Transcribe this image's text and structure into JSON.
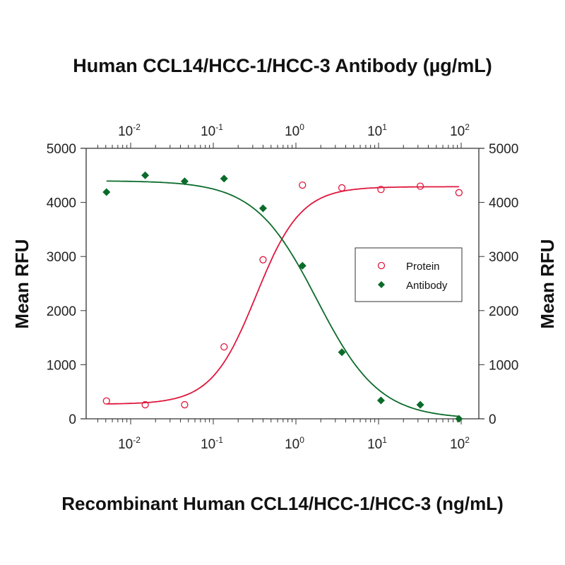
{
  "chart_data": {
    "type": "scatter",
    "title": "Human CCL14/HCC-1/HCC-3 Antibody (µg/mL)",
    "xlabel": "Recombinant Human CCL14/HCC-1/HCC-3 (ng/mL)",
    "ylabel_left": "Mean RFU",
    "ylabel_right": "Mean RFU",
    "xscale": "log",
    "xlim": [
      0.0032,
      180
    ],
    "ylim": [
      0,
      5000
    ],
    "x_ticks": [
      {
        "value": 0.01,
        "base": "10",
        "exp": "-2"
      },
      {
        "value": 0.1,
        "base": "10",
        "exp": "-1"
      },
      {
        "value": 1,
        "base": "10",
        "exp": "0"
      },
      {
        "value": 10,
        "base": "10",
        "exp": "1"
      },
      {
        "value": 100,
        "base": "10",
        "exp": "2"
      }
    ],
    "y_ticks": [
      "0",
      "1000",
      "2000",
      "3000",
      "4000",
      "5000"
    ],
    "y_tick_values": [
      0,
      1000,
      2000,
      3000,
      4000,
      5000
    ],
    "grid": false,
    "legend": {
      "position": "center-right",
      "entries": [
        "Protein",
        "Antibody"
      ]
    },
    "series": [
      {
        "name": "Protein",
        "marker": "open-circle",
        "color": "#e0173d",
        "x": [
          0.0051,
          0.015,
          0.045,
          0.135,
          0.4,
          1.2,
          3.6,
          10.7,
          32,
          94
        ],
        "y": [
          330,
          260,
          260,
          1330,
          2940,
          4320,
          4270,
          4240,
          4300,
          4180
        ],
        "fit": {
          "bottom": 270,
          "top": 4290,
          "ec50": 0.33,
          "hill": 1.6
        }
      },
      {
        "name": "Antibody",
        "marker": "filled-diamond",
        "color": "#0b6b2a",
        "x": [
          0.0051,
          0.015,
          0.045,
          0.135,
          0.4,
          1.2,
          3.6,
          10.7,
          32,
          94
        ],
        "y": [
          4190,
          4500,
          4390,
          4440,
          3890,
          2830,
          1230,
          340,
          260,
          0
        ],
        "fit": {
          "bottom": 0,
          "top": 4400,
          "ec50": 1.8,
          "hill": -1.15
        }
      }
    ]
  }
}
